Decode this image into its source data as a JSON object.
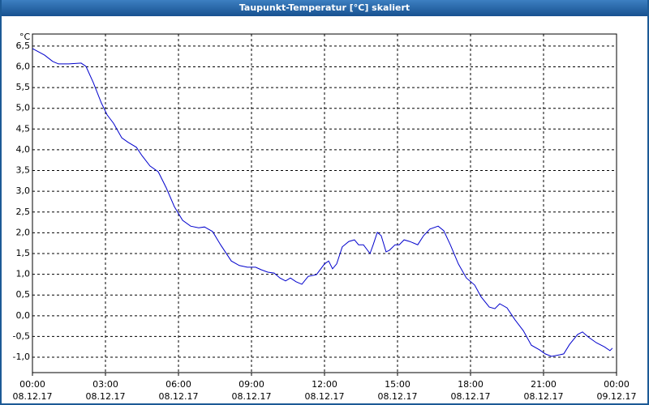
{
  "window_title": "Taupunkt-Temperatur [°C] skaliert",
  "chart_data": {
    "type": "line",
    "y_unit": "°C",
    "x": [
      0,
      0.5,
      0.83,
      1.07,
      1.5,
      2,
      2.2,
      2.5,
      2.83,
      3.07,
      3.33,
      3.67,
      3.93,
      4.27,
      4.5,
      4.83,
      5.17,
      5.5,
      5.83,
      6.17,
      6.5,
      6.83,
      7.07,
      7.4,
      7.73,
      8.17,
      8.5,
      8.83,
      9.17,
      9.4,
      9.67,
      9.93,
      10.17,
      10.4,
      10.6,
      10.83,
      11.07,
      11.33,
      11.67,
      12,
      12.17,
      12.33,
      12.5,
      12.73,
      13,
      13.23,
      13.4,
      13.6,
      13.87,
      14,
      14.17,
      14.33,
      14.53,
      14.67,
      14.9,
      15.07,
      15.27,
      15.5,
      15.83,
      16.07,
      16.33,
      16.67,
      16.9,
      17.17,
      17.5,
      17.83,
      18.17,
      18.43,
      18.77,
      19,
      19.2,
      19.5,
      19.83,
      20.17,
      20.5,
      20.83,
      21.07,
      21.33,
      21.67,
      21.83,
      22.07,
      22.4,
      22.6,
      22.83,
      23.17,
      23.5,
      23.73,
      23.83
    ],
    "series": [
      {
        "name": "Taupunkt-Temperatur",
        "color": "#0000cc",
        "values": [
          6.44,
          6.28,
          6.13,
          6.07,
          6.07,
          6.09,
          6.01,
          5.62,
          5.13,
          4.84,
          4.64,
          4.29,
          4.18,
          4.06,
          3.86,
          3.61,
          3.47,
          3.08,
          2.63,
          2.3,
          2.16,
          2.12,
          2.14,
          2.03,
          1.71,
          1.32,
          1.21,
          1.17,
          1.17,
          1.11,
          1.05,
          1.03,
          0.91,
          0.84,
          0.91,
          0.82,
          0.76,
          0.95,
          0.99,
          1.25,
          1.32,
          1.13,
          1.25,
          1.66,
          1.79,
          1.83,
          1.71,
          1.71,
          1.5,
          1.71,
          2.01,
          1.93,
          1.54,
          1.58,
          1.71,
          1.71,
          1.83,
          1.79,
          1.71,
          1.93,
          2.09,
          2.16,
          2.05,
          1.71,
          1.25,
          0.91,
          0.74,
          0.46,
          0.21,
          0.17,
          0.29,
          0.19,
          -0.1,
          -0.36,
          -0.71,
          -0.82,
          -0.92,
          -0.98,
          -0.94,
          -0.92,
          -0.69,
          -0.45,
          -0.39,
          -0.51,
          -0.65,
          -0.75,
          -0.84,
          -0.78
        ]
      }
    ],
    "xlim": [
      0,
      24
    ],
    "xticks": [
      {
        "value": 0,
        "label": "00:00",
        "sublabel": "08.12.17"
      },
      {
        "value": 3,
        "label": "03:00",
        "sublabel": "08.12.17"
      },
      {
        "value": 6,
        "label": "06:00",
        "sublabel": "08.12.17"
      },
      {
        "value": 9,
        "label": "09:00",
        "sublabel": "08.12.17"
      },
      {
        "value": 12,
        "label": "12:00",
        "sublabel": "08.12.17"
      },
      {
        "value": 15,
        "label": "15:00",
        "sublabel": "08.12.17"
      },
      {
        "value": 18,
        "label": "18:00",
        "sublabel": "08.12.17"
      },
      {
        "value": 21,
        "label": "21:00",
        "sublabel": "08.12.17"
      },
      {
        "value": 24,
        "label": "00:00",
        "sublabel": "09.12.17"
      }
    ],
    "ylim": [
      -1.37,
      6.79
    ],
    "yticks": [
      {
        "value": -1,
        "label": "-1,0"
      },
      {
        "value": -0.5,
        "label": "-0,5"
      },
      {
        "value": 0,
        "label": "0,0"
      },
      {
        "value": 0.5,
        "label": "0,5"
      },
      {
        "value": 1,
        "label": "1,0"
      },
      {
        "value": 1.5,
        "label": "1,5"
      },
      {
        "value": 2,
        "label": "2,0"
      },
      {
        "value": 2.5,
        "label": "2,5"
      },
      {
        "value": 3,
        "label": "3,0"
      },
      {
        "value": 3.5,
        "label": "3,5"
      },
      {
        "value": 4,
        "label": "4,0"
      },
      {
        "value": 4.5,
        "label": "4,5"
      },
      {
        "value": 5,
        "label": "5,0"
      },
      {
        "value": 5.5,
        "label": "5,5"
      },
      {
        "value": 6,
        "label": "6,0"
      },
      {
        "value": 6.5,
        "label": "6,5"
      }
    ],
    "grid": true
  }
}
